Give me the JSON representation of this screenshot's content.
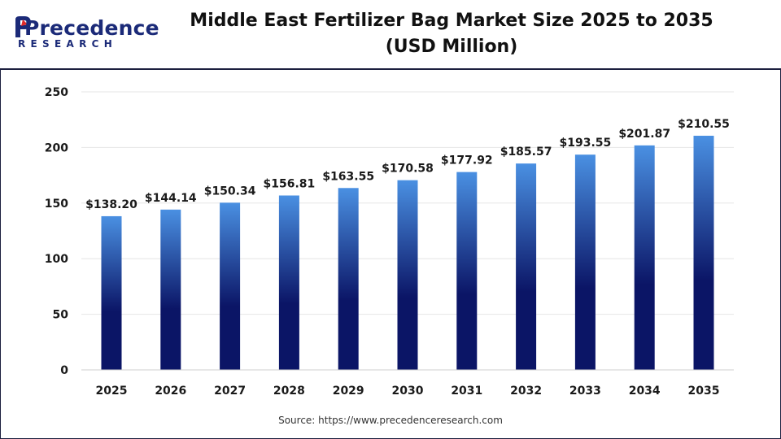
{
  "brand": {
    "logo_main": "Precedence",
    "logo_sub": "RESEARCH"
  },
  "header": {
    "title_line1": "Middle East Fertilizer Bag Market Size 2025 to 2035",
    "title_line2": "(USD Million)"
  },
  "footer": {
    "source": "Source: https://www.precedenceresearch.com"
  },
  "colors": {
    "bar_top": "#4a90e2",
    "bar_bottom": "#0b1566",
    "grid": "#e6e6e6",
    "frame": "#1c1f3f"
  },
  "chart_data": {
    "type": "bar",
    "title": "Middle East Fertilizer Bag Market Size 2025 to 2035 (USD Million)",
    "xlabel": "",
    "ylabel": "",
    "categories": [
      "2025",
      "2026",
      "2027",
      "2028",
      "2029",
      "2030",
      "2031",
      "2032",
      "2033",
      "2034",
      "2035"
    ],
    "values": [
      138.2,
      144.14,
      150.34,
      156.81,
      163.55,
      170.58,
      177.92,
      185.57,
      193.55,
      201.87,
      210.55
    ],
    "value_labels": [
      "$138.20",
      "$144.14",
      "$150.34",
      "$156.81",
      "$163.55",
      "$170.58",
      "$177.92",
      "$185.57",
      "$193.55",
      "$201.87",
      "$210.55"
    ],
    "ylim": [
      0,
      250
    ],
    "yticks": [
      0,
      50,
      100,
      150,
      200,
      250
    ],
    "grid": true,
    "legend": "none"
  }
}
